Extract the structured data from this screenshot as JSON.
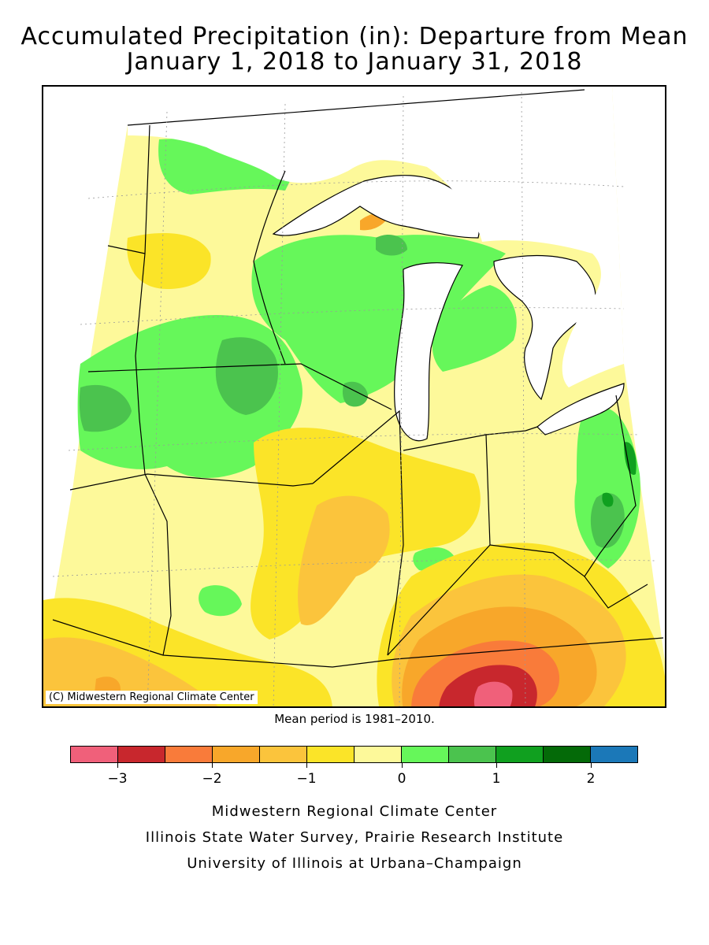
{
  "title": {
    "line1": "Accumulated Precipitation (in): Departure from Mean",
    "line2": "January 1, 2018 to January 31, 2018"
  },
  "map": {
    "copyright": "(C) Midwestern Regional Climate Center",
    "mean_note": "Mean period is 1981–2010."
  },
  "legend": {
    "colors": [
      "#f0607a",
      "#c8272d",
      "#f97b3a",
      "#f8a72a",
      "#fbc43c",
      "#fbe428",
      "#fdf99a",
      "#66f75a",
      "#4bc34e",
      "#10a01f",
      "#046a08",
      "#1b78b8"
    ],
    "ticks": [
      "−3",
      "−2",
      "−1",
      "0",
      "1",
      "2"
    ],
    "tick_boundaries": [
      1,
      3,
      5,
      7,
      9,
      11
    ]
  },
  "credits": {
    "line1": "Midwestern Regional Climate Center",
    "line2": "Illinois State Water Survey, Prairie Research Institute",
    "line3": "University of Illinois at Urbana–Champaign"
  }
}
